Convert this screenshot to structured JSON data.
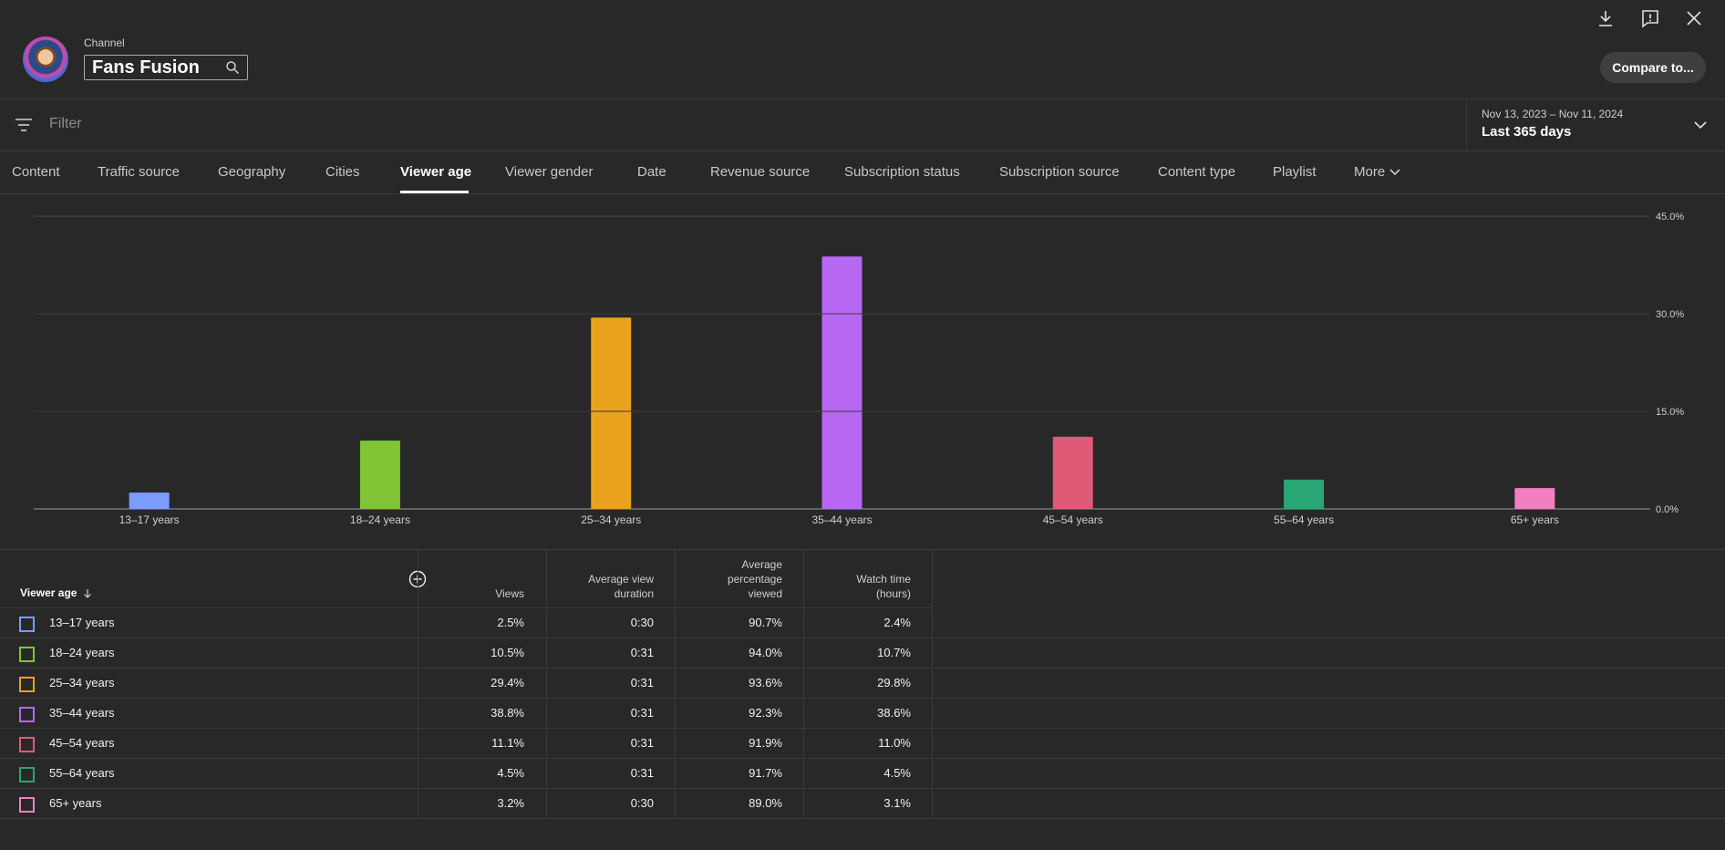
{
  "header": {
    "channel_label": "Channel",
    "channel_name": "Fans Fusion",
    "compare_label": "Compare to..."
  },
  "filter": {
    "placeholder": "Filter",
    "date_range": "Nov 13, 2023 – Nov 11, 2024",
    "period": "Last 365 days"
  },
  "tabs": [
    {
      "label": "Content"
    },
    {
      "label": "Traffic source"
    },
    {
      "label": "Geography"
    },
    {
      "label": "Cities"
    },
    {
      "label": "Viewer age"
    },
    {
      "label": "Viewer gender"
    },
    {
      "label": "Date"
    },
    {
      "label": "Revenue source"
    },
    {
      "label": "Subscription status"
    },
    {
      "label": "Subscription source"
    },
    {
      "label": "Content type"
    },
    {
      "label": "Playlist"
    },
    {
      "label": "More"
    }
  ],
  "active_tab": "Viewer age",
  "chart_data": {
    "type": "bar",
    "categories": [
      "13–17 years",
      "18–24 years",
      "25–34 years",
      "35–44 years",
      "45–54 years",
      "55–64 years",
      "65+ years"
    ],
    "values": [
      2.5,
      10.5,
      29.4,
      38.8,
      11.1,
      4.5,
      3.2
    ],
    "colors": [
      "#7c9cff",
      "#7fc535",
      "#eaa21f",
      "#b867f2",
      "#e05a78",
      "#2aa574",
      "#f27fc1"
    ],
    "y_ticks": [
      "0.0%",
      "15.0%",
      "30.0%",
      "45.0%"
    ],
    "y_tick_values": [
      0,
      15,
      30,
      45
    ],
    "ylim": [
      0,
      45
    ],
    "grid": true
  },
  "table": {
    "first_header": "Viewer age",
    "headers": [
      "Views",
      "Average view duration",
      "Average percentage viewed",
      "Watch time (hours)"
    ],
    "rows": [
      {
        "label": "13–17 years",
        "views": "2.5%",
        "duration": "0:30",
        "pct_viewed": "90.7%",
        "watch_time": "2.4%"
      },
      {
        "label": "18–24 years",
        "views": "10.5%",
        "duration": "0:31",
        "pct_viewed": "94.0%",
        "watch_time": "10.7%"
      },
      {
        "label": "25–34 years",
        "views": "29.4%",
        "duration": "0:31",
        "pct_viewed": "93.6%",
        "watch_time": "29.8%"
      },
      {
        "label": "35–44 years",
        "views": "38.8%",
        "duration": "0:31",
        "pct_viewed": "92.3%",
        "watch_time": "38.6%"
      },
      {
        "label": "45–54 years",
        "views": "11.1%",
        "duration": "0:31",
        "pct_viewed": "91.9%",
        "watch_time": "11.0%"
      },
      {
        "label": "55–64 years",
        "views": "4.5%",
        "duration": "0:31",
        "pct_viewed": "91.7%",
        "watch_time": "4.5%"
      },
      {
        "label": "65+ years",
        "views": "3.2%",
        "duration": "0:30",
        "pct_viewed": "89.0%",
        "watch_time": "3.1%"
      }
    ]
  },
  "icons": {
    "download": "download-icon",
    "feedback": "feedback-icon",
    "close": "close-icon",
    "search": "search-icon",
    "filter": "filter-icon",
    "date_dropdown": "chevron-down-icon",
    "sort": "arrow-down-icon",
    "add_column": "add-circle-icon"
  }
}
